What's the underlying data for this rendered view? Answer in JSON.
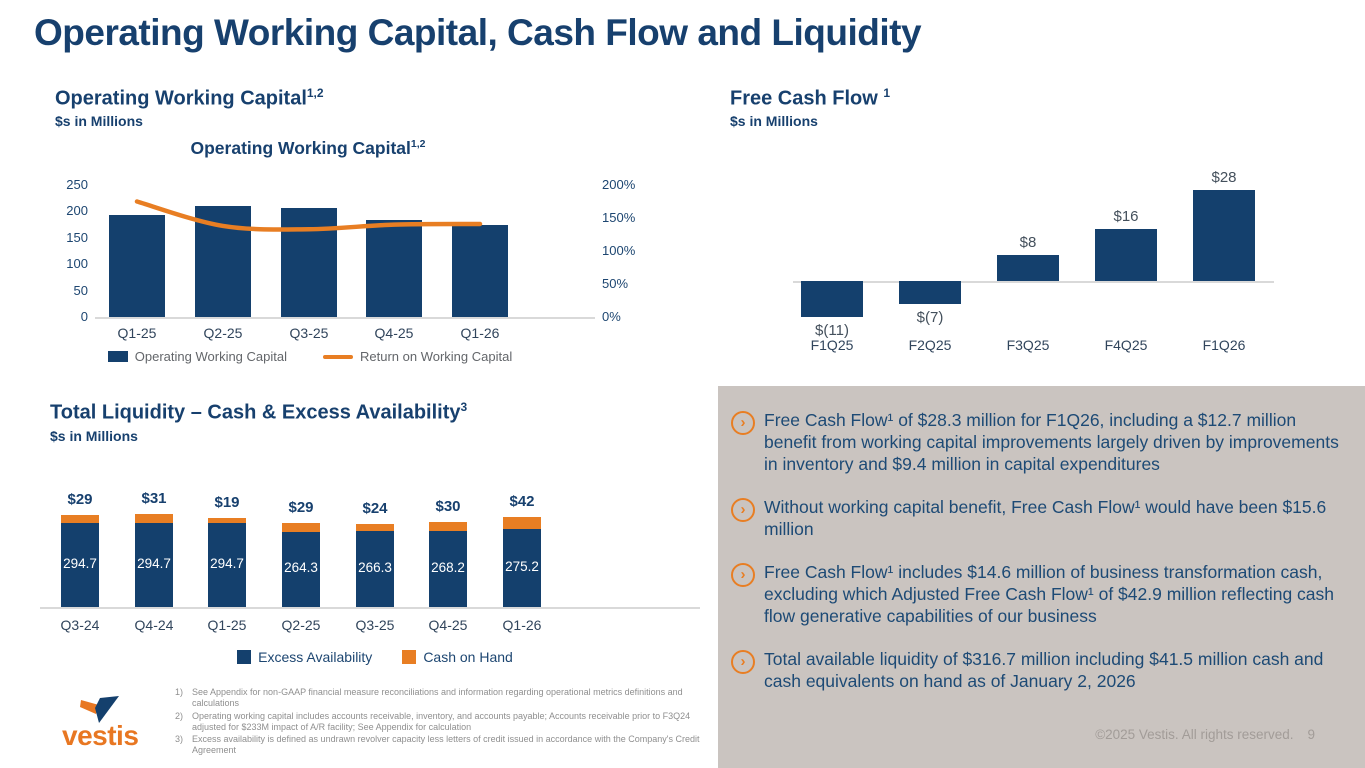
{
  "slide": {
    "title": "Operating Working Capital, Cash Flow and Liquidity",
    "copyright": "©2025 Vestis. All rights reserved.",
    "page_number": "9"
  },
  "sections": {
    "owc": {
      "heading": "Operating Working Capital",
      "heading_sup": "1,2",
      "subheading": "$s in Millions"
    },
    "fcf": {
      "heading": "Free Cash Flow",
      "heading_sup": "1",
      "subheading": "$s in Millions"
    },
    "liquidity": {
      "heading": "Total Liquidity – Cash & Excess Availability",
      "heading_sup": "3",
      "subheading": "$s in Millions"
    }
  },
  "chart_data": [
    {
      "id": "owc",
      "type": "bar+line",
      "title": "Operating Working Capital",
      "title_sup": "1,2",
      "categories": [
        "Q1-25",
        "Q2-25",
        "Q3-25",
        "Q4-25",
        "Q1-26"
      ],
      "series": [
        {
          "name": "Operating Working Capital",
          "type": "bar",
          "axis": "left",
          "values": [
            193,
            210,
            206,
            183,
            174
          ]
        },
        {
          "name": "Return on Working Capital",
          "type": "line",
          "axis": "right",
          "values_percent": [
            175,
            138,
            133,
            140,
            141
          ]
        }
      ],
      "left_axis": {
        "min": 0,
        "max": 250,
        "ticks": [
          250,
          200,
          150,
          100,
          50,
          0
        ]
      },
      "right_axis": {
        "min_percent": 0,
        "max_percent": 200,
        "ticks_percent": [
          200,
          150,
          100,
          50,
          0
        ]
      },
      "legend": [
        "Operating Working Capital",
        "Return on Working Capital"
      ],
      "grid": "off",
      "legend_position": "bottom"
    },
    {
      "id": "fcf",
      "type": "bar",
      "title": "Free Cash Flow",
      "categories": [
        "F1Q25",
        "F2Q25",
        "F3Q25",
        "F4Q25",
        "F1Q26"
      ],
      "values": [
        -11,
        -7,
        8,
        16,
        28
      ],
      "value_labels": [
        "$(11)",
        "$(7)",
        "$8",
        "$16",
        "$28"
      ],
      "grid": "off"
    },
    {
      "id": "liquidity",
      "type": "stacked-bar",
      "categories": [
        "Q3-24",
        "Q4-24",
        "Q1-25",
        "Q2-25",
        "Q3-25",
        "Q4-25",
        "Q1-26"
      ],
      "series": [
        {
          "name": "Excess Availability",
          "values": [
            294.7,
            294.7,
            294.7,
            264.3,
            266.3,
            268.2,
            275.2
          ],
          "labels": [
            "294.7",
            "294.7",
            "294.7",
            "264.3",
            "266.3",
            "268.2",
            "275.2"
          ]
        },
        {
          "name": "Cash on Hand",
          "values": [
            29,
            31,
            19,
            29,
            24,
            30,
            42
          ],
          "labels": [
            "$29",
            "$31",
            "$19",
            "$29",
            "$24",
            "$30",
            "$42"
          ]
        }
      ],
      "legend": [
        "Excess Availability",
        "Cash on Hand"
      ],
      "grid": "off",
      "legend_position": "bottom"
    }
  ],
  "callouts": {
    "bullets": [
      "Free Cash Flow¹ of $28.3 million for F1Q26, including a $12.7 million benefit from working capital improvements largely driven by improvements in inventory and $9.4 million in capital expenditures",
      "Without working capital benefit, Free Cash Flow¹ would have been $15.6 million",
      "Free Cash Flow¹ includes $14.6 million of business transformation cash, excluding which Adjusted Free Cash Flow¹ of $42.9 million reflecting cash flow generative capabilities of our business",
      "Total available liquidity of $316.7 million including $41.5 million cash and cash equivalents on hand as of January 2, 2026"
    ]
  },
  "footnotes": [
    {
      "num": "1)",
      "text": "See Appendix for non-GAAP financial measure reconciliations and information regarding operational metrics definitions and calculations"
    },
    {
      "num": "2)",
      "text": "Operating working capital includes accounts receivable, inventory, and accounts payable; Accounts receivable prior to F3Q24 adjusted for $233M impact of A/R facility; See Appendix for calculation"
    },
    {
      "num": "3)",
      "text": "Excess availability is defined as undrawn revolver capacity less letters of credit issued in accordance with the Company's Credit Agreement"
    }
  ],
  "logo": {
    "wordmark": "vestis"
  },
  "colors": {
    "navy": "#14406d",
    "orange": "#e87e23",
    "title_navy": "#17406e",
    "box_bg": "#cac4c0",
    "box_text": "#1d4a75",
    "footnote_gray": "#8f8f8f",
    "copyright_gray": "#a29c98",
    "legend_gray": "#63666a",
    "baseline_gray": "#d9d9d9",
    "bar_label_white": "#ffffff"
  }
}
